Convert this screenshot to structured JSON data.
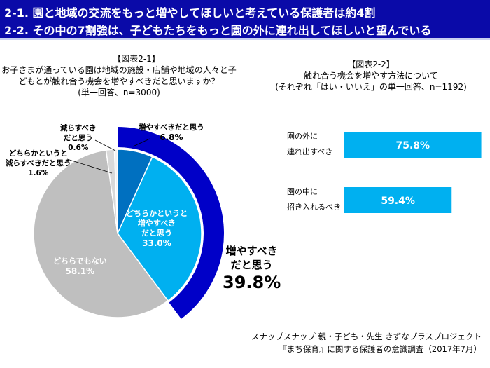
{
  "header": {
    "line1": "2-1. 園と地域の交流をもっと増やしてほしいと考えている保護者は約4割",
    "line2": "2-2. その中の7割強は、子どもたちをもっと園の外に連れ出してほしいと望んでいる"
  },
  "colors": {
    "header": "#0a0aa8",
    "increase": "#0070c0",
    "somewhat_increase": "#00b0f0",
    "neither": "#bfbfbf",
    "somewhat_decrease": "#d9d9d9",
    "decrease": "#f2f2f2",
    "ring": "#0000c8",
    "bar": "#00b0f0"
  },
  "chart_data": [
    {
      "type": "pie",
      "title": "【図表2-1】",
      "subtitle": [
        "お子さまが通っている園は地域の施設・店舗や地域の人々と子",
        "どもとが触れ合う機会を増やすべきだと思いますか？",
        "(単一回答、n=3000)"
      ],
      "slices": [
        {
          "label": "増やすべきだと思う",
          "value": 6.8
        },
        {
          "label": "どちらかというと増やすべきだと思う",
          "value": 33.0
        },
        {
          "label": "どちらでもない",
          "value": 58.1
        },
        {
          "label": "どちらかというと減らすべきだと思う",
          "value": 1.6
        },
        {
          "label": "減らすべきだと思う",
          "value": 0.6
        }
      ],
      "ring": {
        "label_lines": [
          "増やすべき",
          "だと思う"
        ],
        "value": 39.8,
        "value_label": "39.8%"
      },
      "labels": {
        "inc": [
          "増やすべきだと思う",
          "6.8%"
        ],
        "sinc": [
          "どちらかというと",
          "増やすべき",
          "だと思う",
          "33.0%"
        ],
        "neither": [
          "どちらでもない",
          "58.1%"
        ],
        "sdec": [
          "どちらかというと",
          "減らすべきだと思う",
          "1.6%"
        ],
        "dec": [
          "減らすべき",
          "だと思う",
          "0.6%"
        ]
      }
    },
    {
      "type": "bar",
      "orientation": "horizontal",
      "title": "【図表2-2】",
      "subtitle": [
        "触れ合う機会を増やす方法について",
        "(それぞれ「はい・いいえ」の単一回答、n=1192)"
      ],
      "categories": [
        [
          "園の外に",
          "連れ出すべき"
        ],
        [
          "園の中に",
          "招き入れるべき"
        ]
      ],
      "values": [
        75.8,
        59.4
      ],
      "value_labels": [
        "75.8%",
        "59.4%"
      ],
      "xlim": [
        0,
        100
      ]
    }
  ],
  "source": {
    "line1": "スナップスナップ 親・子ども・先生 きずなプラスプロジェクト",
    "line2": "『まち保育』に関する保護者の意識調査（2017年7月）"
  }
}
